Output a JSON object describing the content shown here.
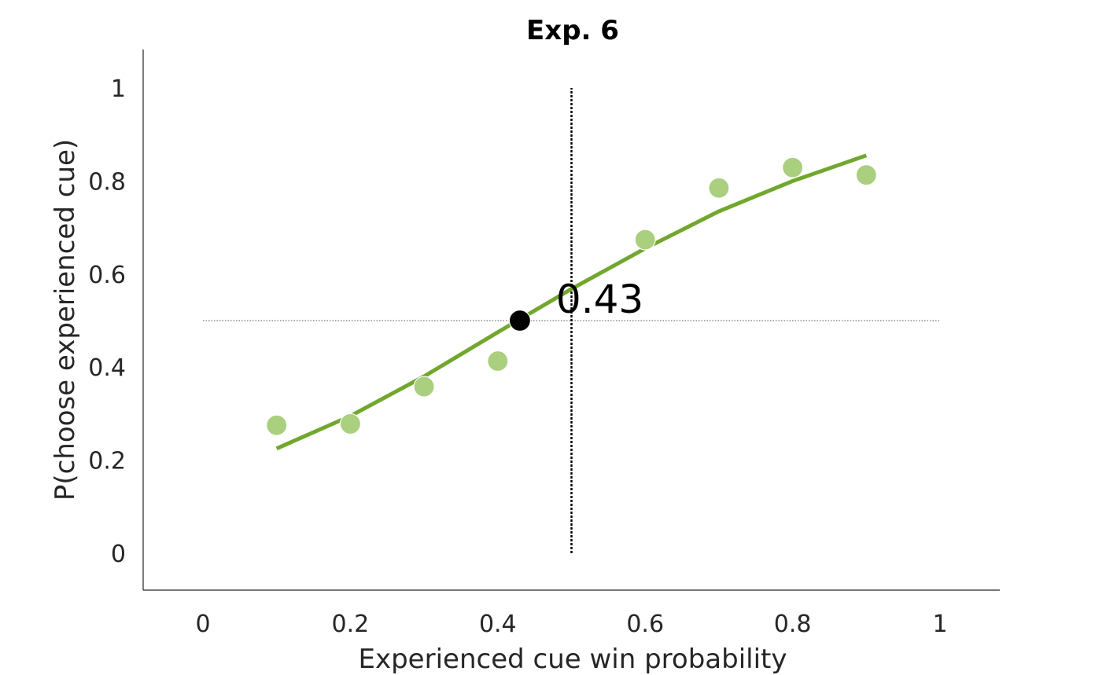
{
  "chart_data": {
    "type": "scatter",
    "title": "Exp. 6",
    "xlabel": "Experienced cue win probability",
    "ylabel": "P(choose experienced cue)",
    "xlim": [
      -0.08,
      1.08
    ],
    "ylim": [
      -0.08,
      1.08
    ],
    "xticks": [
      0,
      0.2,
      0.4,
      0.6,
      0.8,
      1
    ],
    "xtick_labels": [
      "0",
      "0.2",
      "0.4",
      "0.6",
      "0.8",
      "1"
    ],
    "yticks": [
      0,
      0.2,
      0.4,
      0.6,
      0.8,
      1
    ],
    "ytick_labels": [
      "0",
      "0.2",
      "0.4",
      "0.6",
      "0.8",
      "1"
    ],
    "grid": false,
    "points": {
      "x": [
        0.1,
        0.2,
        0.3,
        0.4,
        0.6,
        0.7,
        0.8,
        0.9
      ],
      "y": [
        0.275,
        0.278,
        0.358,
        0.413,
        0.674,
        0.785,
        0.829,
        0.813
      ],
      "color": "#a9cf7f"
    },
    "fit_line": {
      "x": [
        0.1,
        0.2,
        0.3,
        0.4,
        0.5,
        0.6,
        0.7,
        0.8,
        0.9
      ],
      "y": [
        0.225,
        0.295,
        0.38,
        0.475,
        0.568,
        0.655,
        0.735,
        0.8,
        0.855
      ],
      "color": "#72a72e"
    },
    "indifference_point": {
      "x": 0.43,
      "y": 0.5,
      "label": "0.43",
      "color": "#000000"
    },
    "reference_lines": {
      "horizontal_y": 0.5,
      "horizontal_x_range": [
        0,
        1
      ],
      "vertical_x": 0.5,
      "vertical_y_range": [
        0,
        1
      ]
    }
  }
}
